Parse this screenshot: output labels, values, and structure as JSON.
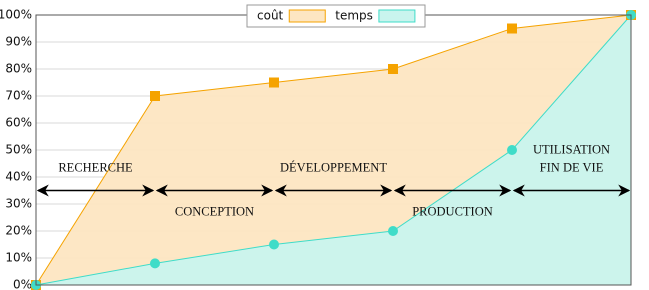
{
  "chart_data": {
    "type": "area",
    "categories": [
      null,
      null,
      null,
      null,
      null,
      null
    ],
    "series": [
      {
        "name": "coût",
        "color": "#f5a300",
        "fill": "#fde6c2",
        "marker": "square",
        "values": [
          0,
          70,
          75,
          80,
          95,
          100
        ]
      },
      {
        "name": "temps",
        "color": "#3fdcc8",
        "fill": "#c9f4ee",
        "marker": "circle",
        "values": [
          0,
          8,
          15,
          20,
          50,
          100
        ]
      }
    ],
    "ylim": [
      0,
      100
    ],
    "yticks": [
      {
        "value": 0,
        "label": "0%"
      },
      {
        "value": 10,
        "label": "10%"
      },
      {
        "value": 20,
        "label": "20%"
      },
      {
        "value": 30,
        "label": "30%"
      },
      {
        "value": 40,
        "label": "40%"
      },
      {
        "value": 50,
        "label": "50%"
      },
      {
        "value": 60,
        "label": "60%"
      },
      {
        "value": 70,
        "label": "70%"
      },
      {
        "value": 80,
        "label": "80%"
      },
      {
        "value": 90,
        "label": "90%"
      },
      {
        "value": 100,
        "label": "100%"
      }
    ],
    "grid": true,
    "legend": "top",
    "annotations": [
      [
        "RECHERCHE"
      ],
      [
        "CONCEPTION"
      ],
      [
        "DÉVELOPPEMENT"
      ],
      [
        "PRODUCTION"
      ],
      [
        "UTILISATION",
        "FIN DE VIE"
      ]
    ]
  }
}
